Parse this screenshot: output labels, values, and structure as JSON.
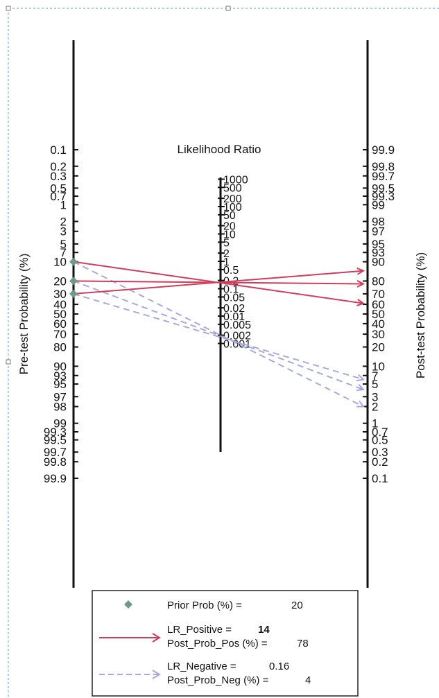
{
  "chart_data": {
    "type": "nomogram",
    "title": "Likelihood Ratio",
    "left_axis": {
      "label": "Pre-test Probability (%)",
      "ticks": [
        "0.1",
        "0.2",
        "0.3",
        "0.5",
        "0.7",
        "1",
        "2",
        "3",
        "5",
        "7",
        "10",
        "20",
        "30",
        "40",
        "50",
        "60",
        "70",
        "80",
        "90",
        "93",
        "95",
        "97",
        "98",
        "99",
        "99.3",
        "99.5",
        "99.7",
        "99.8",
        "99.9"
      ]
    },
    "right_axis": {
      "label": "Post-test Probability (%)",
      "ticks": [
        "99.9",
        "99.8",
        "99.7",
        "99.5",
        "99.3",
        "99",
        "98",
        "97",
        "95",
        "93",
        "90",
        "80",
        "70",
        "60",
        "50",
        "40",
        "30",
        "20",
        "10",
        "7",
        "5",
        "3",
        "2",
        "1",
        "0.7",
        "0.5",
        "0.3",
        "0.2",
        "0.1"
      ]
    },
    "middle_axis": {
      "label": "Likelihood Ratio",
      "ticks": [
        "1000",
        "500",
        "200",
        "100",
        "50",
        "20",
        "10",
        "5",
        "2",
        "1",
        "0.5",
        "0.2",
        "0.1",
        "0.05",
        "0.02",
        "0.01",
        "0.005",
        "0.002",
        "0.001"
      ]
    },
    "prior_points": [
      10,
      20,
      30
    ],
    "positive_lines": [
      {
        "prior": 10,
        "lr": 14,
        "posterior": 61
      },
      {
        "prior": 20,
        "lr": 14,
        "posterior": 78
      },
      {
        "prior": 30,
        "lr": 14,
        "posterior": 86
      }
    ],
    "negative_lines": [
      {
        "prior": 10,
        "lr": 0.16,
        "posterior": 2
      },
      {
        "prior": 20,
        "lr": 0.16,
        "posterior": 4
      },
      {
        "prior": 30,
        "lr": 0.16,
        "posterior": 6
      }
    ],
    "colors": {
      "positive": "#d23c5a",
      "negative": "#a8a8e0",
      "prior_marker": "#6e9a86",
      "axis": "#111111",
      "frame": "#5b9bd5"
    },
    "legend": {
      "prior_label": "Prior Prob (%) =",
      "prior_value": "20",
      "lr_pos_label": "LR_Positive =",
      "lr_pos_value": "14",
      "post_pos_label": "Post_Prob_Pos (%) =",
      "post_pos_value": "78",
      "lr_neg_label": "LR_Negative =",
      "lr_neg_value": "0.16",
      "post_neg_label": "Post_Prob_Neg (%) =",
      "post_neg_value": "4"
    }
  }
}
